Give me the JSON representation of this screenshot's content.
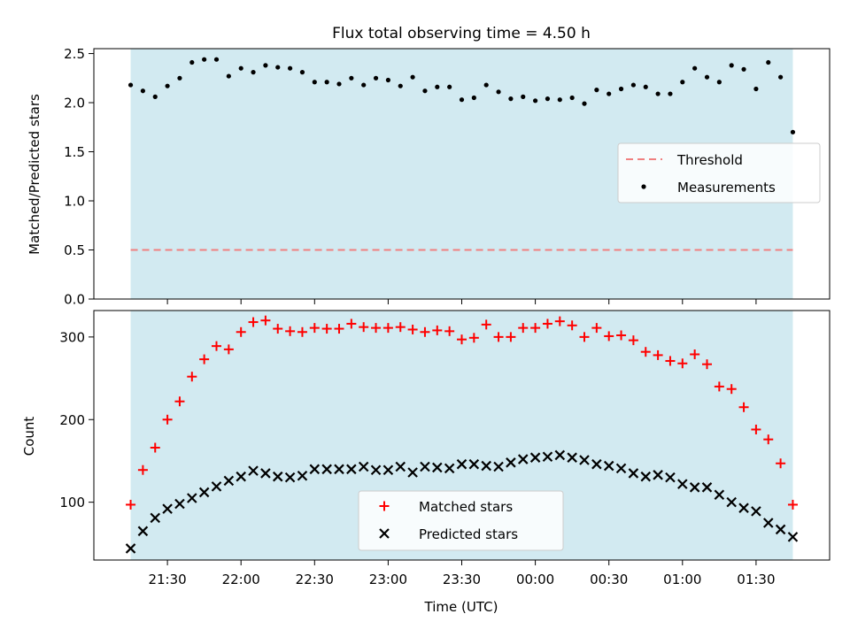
{
  "title": "Flux total observing time = 4.50 h",
  "colors": {
    "observing_band": "#add8e6",
    "threshold": "#f08080",
    "measurements": "#000000",
    "matched": "#ff0000",
    "predicted": "#000000"
  },
  "chart_data": [
    {
      "type": "scatter",
      "ylabel": "Matched/Predicted stars",
      "ylim": [
        0.0,
        2.55
      ],
      "yticks": [
        "0.0",
        "0.5",
        "1.0",
        "1.5",
        "2.0",
        "2.5"
      ],
      "grid": false,
      "legend_position": "center-right",
      "observing_window": [
        "21:15",
        "01:45"
      ],
      "threshold": {
        "name": "Threshold",
        "value": 0.5
      },
      "series": [
        {
          "name": "Measurements",
          "x": [
            "21:15",
            "21:20",
            "21:25",
            "21:30",
            "21:35",
            "21:40",
            "21:45",
            "21:50",
            "21:55",
            "22:00",
            "22:05",
            "22:10",
            "22:15",
            "22:20",
            "22:25",
            "22:30",
            "22:35",
            "22:40",
            "22:45",
            "22:50",
            "22:55",
            "23:00",
            "23:05",
            "23:10",
            "23:15",
            "23:20",
            "23:25",
            "23:30",
            "23:35",
            "23:40",
            "23:45",
            "23:50",
            "23:55",
            "00:00",
            "00:05",
            "00:10",
            "00:15",
            "00:20",
            "00:25",
            "00:30",
            "00:35",
            "00:40",
            "00:45",
            "00:50",
            "00:55",
            "01:00",
            "01:05",
            "01:10",
            "01:15",
            "01:20",
            "01:25",
            "01:30",
            "01:35",
            "01:40",
            "01:45"
          ],
          "values": [
            2.18,
            2.12,
            2.06,
            2.17,
            2.25,
            2.41,
            2.44,
            2.44,
            2.27,
            2.35,
            2.31,
            2.38,
            2.36,
            2.35,
            2.31,
            2.21,
            2.21,
            2.19,
            2.25,
            2.18,
            2.25,
            2.23,
            2.17,
            2.26,
            2.12,
            2.16,
            2.16,
            2.03,
            2.05,
            2.18,
            2.11,
            2.04,
            2.06,
            2.02,
            2.04,
            2.03,
            2.05,
            1.99,
            2.13,
            2.09,
            2.14,
            2.18,
            2.16,
            2.09,
            2.09,
            2.21,
            2.35,
            2.26,
            2.21,
            2.38,
            2.34,
            2.14,
            2.41,
            2.26,
            1.7
          ]
        }
      ]
    },
    {
      "type": "scatter",
      "xlabel": "Time (UTC)",
      "ylabel": "Count",
      "ylim": [
        30,
        332
      ],
      "yticks": [
        "100",
        "200",
        "300"
      ],
      "xticks": [
        "21:30",
        "22:00",
        "22:30",
        "23:00",
        "23:30",
        "00:00",
        "00:30",
        "01:00",
        "01:30"
      ],
      "grid": false,
      "legend_position": "lower-center",
      "observing_window": [
        "21:15",
        "01:45"
      ],
      "series": [
        {
          "name": "Matched stars",
          "x": [
            "21:15",
            "21:20",
            "21:25",
            "21:30",
            "21:35",
            "21:40",
            "21:45",
            "21:50",
            "21:55",
            "22:00",
            "22:05",
            "22:10",
            "22:15",
            "22:20",
            "22:25",
            "22:30",
            "22:35",
            "22:40",
            "22:45",
            "22:50",
            "22:55",
            "23:00",
            "23:05",
            "23:10",
            "23:15",
            "23:20",
            "23:25",
            "23:30",
            "23:35",
            "23:40",
            "23:45",
            "23:50",
            "23:55",
            "00:00",
            "00:05",
            "00:10",
            "00:15",
            "00:20",
            "00:25",
            "00:30",
            "00:35",
            "00:40",
            "00:45",
            "00:50",
            "00:55",
            "01:00",
            "01:05",
            "01:10",
            "01:15",
            "01:20",
            "01:25",
            "01:30",
            "01:35",
            "01:40",
            "01:45"
          ],
          "values": [
            97,
            139,
            166,
            200,
            222,
            252,
            273,
            289,
            285,
            306,
            318,
            320,
            310,
            307,
            306,
            311,
            310,
            310,
            316,
            312,
            311,
            311,
            312,
            309,
            306,
            308,
            307,
            297,
            299,
            315,
            300,
            300,
            311,
            311,
            316,
            319,
            314,
            300,
            311,
            301,
            302,
            296,
            282,
            278,
            271,
            268,
            279,
            267,
            240,
            237,
            215,
            188,
            176,
            147,
            97
          ]
        },
        {
          "name": "Predicted stars",
          "x": [
            "21:15",
            "21:20",
            "21:25",
            "21:30",
            "21:35",
            "21:40",
            "21:45",
            "21:50",
            "21:55",
            "22:00",
            "22:05",
            "22:10",
            "22:15",
            "22:20",
            "22:25",
            "22:30",
            "22:35",
            "22:40",
            "22:45",
            "22:50",
            "22:55",
            "23:00",
            "23:05",
            "23:10",
            "23:15",
            "23:20",
            "23:25",
            "23:30",
            "23:35",
            "23:40",
            "23:45",
            "23:50",
            "23:55",
            "00:00",
            "00:05",
            "00:10",
            "00:15",
            "00:20",
            "00:25",
            "00:30",
            "00:35",
            "00:40",
            "00:45",
            "00:50",
            "00:55",
            "01:00",
            "01:05",
            "01:10",
            "01:15",
            "01:20",
            "01:25",
            "01:30",
            "01:35",
            "01:40",
            "01:45"
          ],
          "values": [
            44,
            65,
            81,
            92,
            98,
            105,
            112,
            119,
            126,
            131,
            138,
            135,
            131,
            130,
            132,
            140,
            140,
            140,
            140,
            143,
            139,
            139,
            143,
            136,
            143,
            142,
            141,
            146,
            146,
            144,
            143,
            148,
            152,
            154,
            155,
            157,
            154,
            151,
            146,
            144,
            141,
            135,
            131,
            133,
            130,
            122,
            118,
            118,
            109,
            100,
            93,
            89,
            75,
            67,
            58
          ]
        }
      ]
    }
  ]
}
